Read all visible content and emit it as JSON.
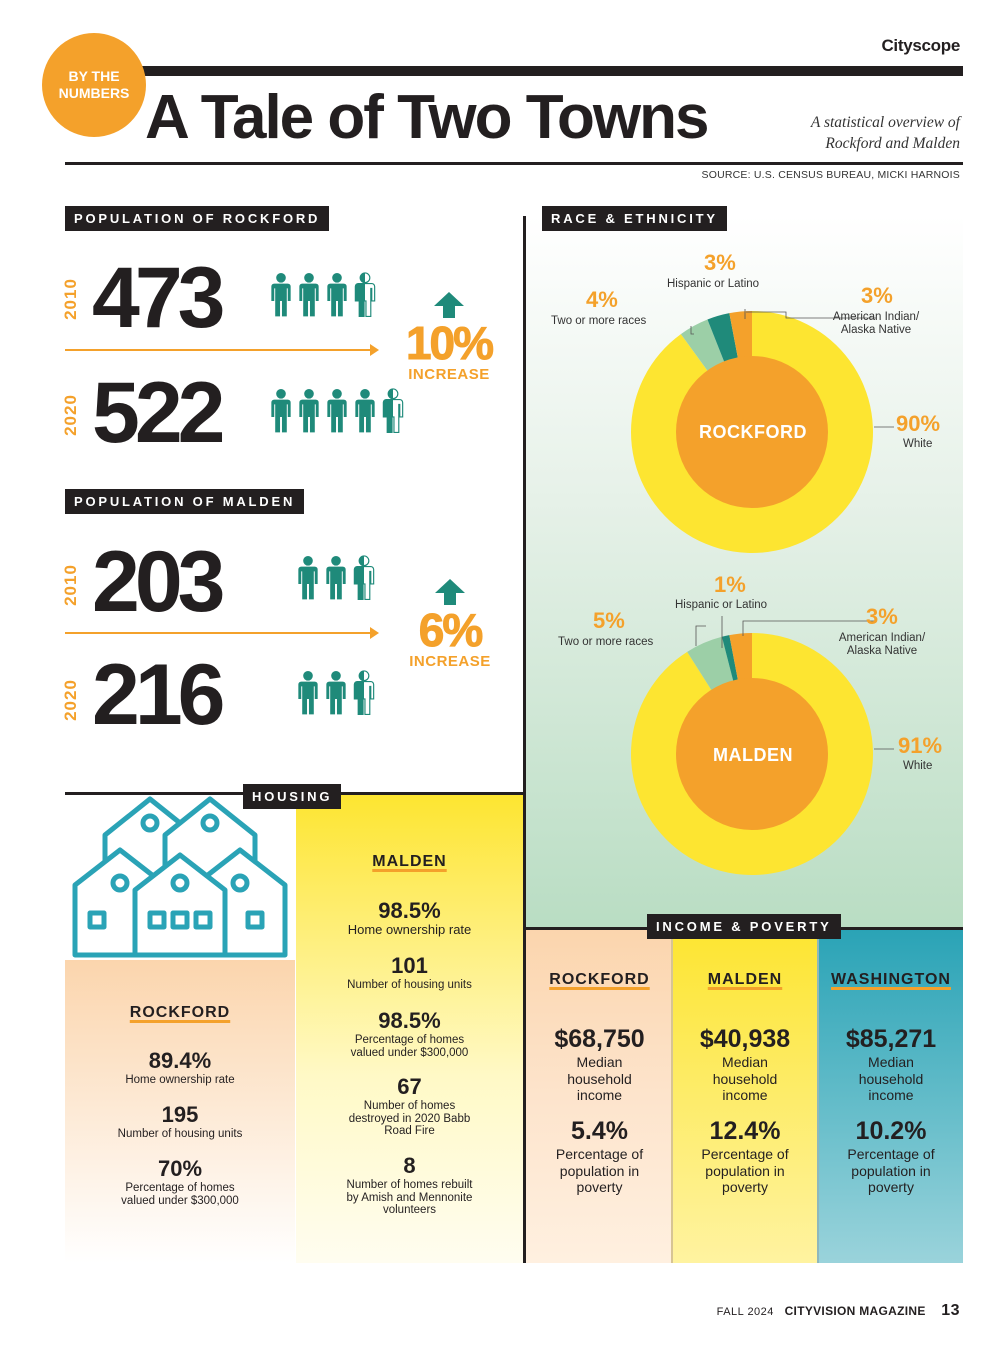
{
  "brand": "Cityscope",
  "badge": {
    "line1": "BY THE",
    "line2": "NUMBERS"
  },
  "title": "A Tale of Two Towns",
  "subtitle": {
    "line1": "A statistical overview of",
    "line2": "Rockford and Malden"
  },
  "source": "SOURCE: U.S. CENSUS BUREAU, MICKI HARNOIS",
  "colors": {
    "orange": "#f4a12b",
    "teal": "#1f8a7a",
    "yellow": "#fde531",
    "dark": "#231f20",
    "green": "#9ccfa7",
    "washington": "#2aa3b6"
  },
  "population": {
    "rockford": {
      "label": "POPULATION OF ROCKFORD",
      "y1": "2010",
      "v1": "473",
      "icons1": 3.5,
      "y2": "2020",
      "v2": "522",
      "icons2": 4.5,
      "pct": "10%",
      "change": "INCREASE"
    },
    "malden": {
      "label": "POPULATION OF MALDEN",
      "y1": "2010",
      "v1": "203",
      "icons1": 2.5,
      "y2": "2020",
      "v2": "216",
      "icons2": 2.5,
      "pct": "6%",
      "change": "INCREASE"
    }
  },
  "race": {
    "label": "RACE & ETHNICITY",
    "rockford": {
      "name": "ROCKFORD",
      "white": {
        "pct": "90%",
        "label": "White",
        "value": 90
      },
      "two": {
        "pct": "4%",
        "label": "Two or more races",
        "value": 4
      },
      "hisp": {
        "pct": "3%",
        "label": "Hispanic or Latino",
        "value": 3
      },
      "amind": {
        "pct": "3%",
        "label1": "American Indian/",
        "label2": "Alaska Native",
        "value": 3
      }
    },
    "malden": {
      "name": "MALDEN",
      "white": {
        "pct": "91%",
        "label": "White",
        "value": 91
      },
      "two": {
        "pct": "5%",
        "label": "Two or more races",
        "value": 5
      },
      "hisp": {
        "pct": "1%",
        "label": "Hispanic or Latino",
        "value": 1
      },
      "amind": {
        "pct": "3%",
        "label1": "American Indian/",
        "label2": "Alaska Native",
        "value": 3
      }
    }
  },
  "housing": {
    "label": "HOUSING",
    "rockford": {
      "name": "ROCKFORD",
      "stats": [
        {
          "value": "89.4%",
          "desc": "Home ownership rate"
        },
        {
          "value": "195",
          "desc": "Number of housing units"
        },
        {
          "value": "70%",
          "desc1": "Percentage of homes",
          "desc2": "valued under $300,000"
        }
      ]
    },
    "malden": {
      "name": "MALDEN",
      "stats": [
        {
          "value": "98.5%",
          "desc": "Home ownership rate"
        },
        {
          "value": "101",
          "desc": "Number of housing units"
        },
        {
          "value": "98.5%",
          "desc1": "Percentage of homes",
          "desc2": "valued under $300,000"
        },
        {
          "value": "67",
          "desc1": "Number of homes",
          "desc2": "destroyed in 2020 Babb",
          "desc3": "Road Fire"
        },
        {
          "value": "8",
          "desc1": "Number of homes rebuilt",
          "desc2": "by Amish and Mennonite",
          "desc3": "volunteers"
        }
      ]
    }
  },
  "income": {
    "label": "INCOME & POVERTY",
    "columns": [
      {
        "name": "ROCKFORD",
        "income": "$68,750",
        "poverty": "5.4%"
      },
      {
        "name": "MALDEN",
        "income": "$40,938",
        "poverty": "12.4%"
      },
      {
        "name": "WASHINGTON",
        "income": "$85,271",
        "poverty": "10.2%"
      }
    ],
    "income_desc": {
      "l1": "Median",
      "l2": "household",
      "l3": "income"
    },
    "poverty_desc": {
      "l1": "Percentage of",
      "l2": "population in",
      "l3": "poverty"
    }
  },
  "footer": {
    "issue": "FALL 2024",
    "magazine": "CITYVISION MAGAZINE",
    "page": "13"
  }
}
